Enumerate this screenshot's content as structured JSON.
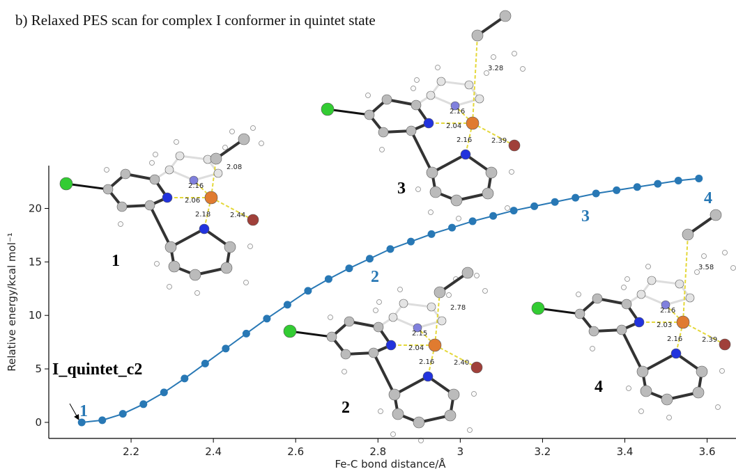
{
  "chart_data": {
    "type": "line",
    "title": "b) Relaxed PES scan for complex I conformer in quintet state",
    "x_label": "Fe-C bond distance/Å",
    "y_label": "Relative energy/kcal mol⁻¹",
    "x": [
      2.08,
      2.13,
      2.18,
      2.23,
      2.28,
      2.33,
      2.38,
      2.43,
      2.48,
      2.53,
      2.58,
      2.63,
      2.68,
      2.73,
      2.78,
      2.83,
      2.88,
      2.93,
      2.98,
      3.03,
      3.08,
      3.13,
      3.18,
      3.23,
      3.28,
      3.33,
      3.38,
      3.43,
      3.48,
      3.53,
      3.58
    ],
    "series": [
      {
        "name": "I_quintet_c2",
        "color": "#2878b5",
        "values": [
          0,
          0.2,
          0.8,
          1.7,
          2.8,
          4.1,
          5.5,
          6.9,
          8.3,
          9.7,
          11.0,
          12.3,
          13.4,
          14.4,
          15.3,
          16.2,
          16.9,
          17.6,
          18.2,
          18.8,
          19.3,
          19.8,
          20.2,
          20.6,
          21.0,
          21.4,
          21.7,
          22.0,
          22.3,
          22.6,
          22.8
        ]
      }
    ],
    "xlim": [
      2.0,
      3.66
    ],
    "ylim": [
      -1.5,
      24
    ],
    "xticks": [
      2.2,
      2.4,
      2.6,
      2.8,
      3.0,
      3.2,
      3.4,
      3.6
    ],
    "yticks": [
      0,
      5,
      10,
      15,
      20
    ],
    "point_labels": [
      "1",
      "2",
      "3",
      "4"
    ],
    "structures": [
      {
        "label": "1",
        "distances": [
          "2.08",
          "2.16",
          "2.06",
          "2.18",
          "2.44"
        ]
      },
      {
        "label": "2",
        "distances": [
          "2.78",
          "2.15",
          "2.04",
          "2.16",
          "2.40"
        ]
      },
      {
        "label": "3",
        "distances": [
          "3.28",
          "2.16",
          "2.04",
          "2.16",
          "2.39"
        ]
      },
      {
        "label": "4",
        "distances": [
          "3.58",
          "2.16",
          "2.03",
          "2.16",
          "2.39"
        ]
      }
    ]
  }
}
